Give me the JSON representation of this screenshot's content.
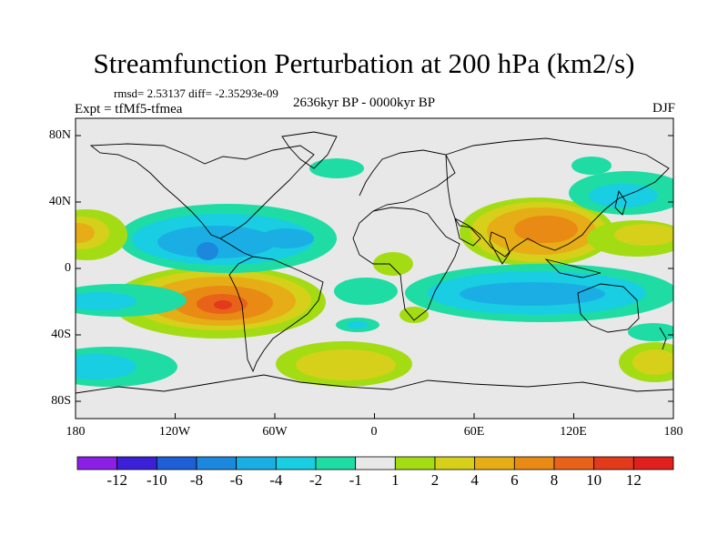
{
  "header": {
    "title": "Streamfunction Perturbation at 200 hPa (km2/s)",
    "stats": "rmsd= 2.53137 diff= -2.35293e-09",
    "experiment": "Expt = tfMf5-tfmea",
    "period": "2636kyr BP - 0000kyr BP",
    "season": "DJF"
  },
  "map": {
    "projection": "cylindrical equidistant",
    "lon_range": [
      -180,
      180
    ],
    "lat_range": [
      -90,
      90
    ],
    "lat_tick_labels": [
      "80N",
      "40N",
      "0",
      "40S",
      "80S"
    ],
    "lon_tick_labels": [
      "180",
      "120W",
      "60W",
      "0",
      "60E",
      "120E",
      "180"
    ]
  },
  "colorbar": {
    "labels": [
      "-12",
      "-10",
      "-8",
      "-6",
      "-4",
      "-2",
      "-1",
      "1",
      "2",
      "4",
      "6",
      "8",
      "10",
      "12"
    ],
    "colors": [
      "#8c1fe6",
      "#3b20d8",
      "#1c5fd6",
      "#1b88dd",
      "#1aaee4",
      "#19cde3",
      "#1edca4",
      "#e8e8e8",
      "#a4dc14",
      "#d6d01a",
      "#e6ad16",
      "#e88a14",
      "#e8621a",
      "#e23a1a",
      "#e0201c"
    ]
  }
}
